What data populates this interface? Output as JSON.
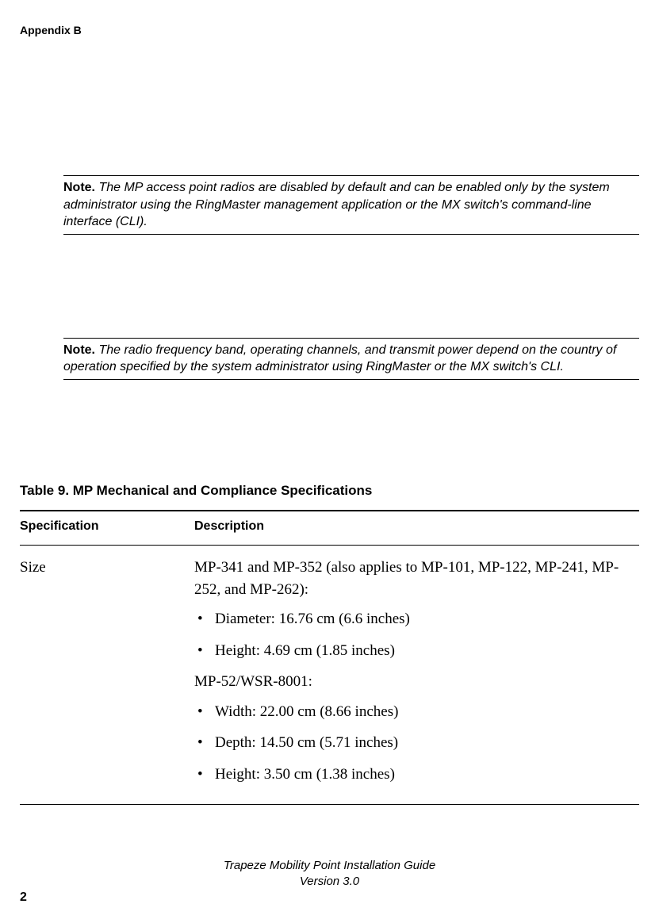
{
  "header": {
    "appendix": "Appendix  B"
  },
  "notes": [
    {
      "label": "Note.",
      "text": "  The MP access point radios are disabled by default and can be enabled only by the system administrator using the  RingMaster management application or the MX switch's command-line interface (CLI)."
    },
    {
      "label": "Note.",
      "text": "  The radio frequency band, operating channels, and transmit power depend on the country of operation specified by the system administrator using RingMaster or the MX switch's CLI."
    }
  ],
  "table": {
    "caption": "Table 9.    MP Mechanical and Compliance Specifications",
    "columns": [
      "Specification",
      "Description"
    ],
    "rows": [
      {
        "spec": "Size",
        "desc": {
          "para1": "MP-341 and MP-352 (also applies to MP-101, MP-122, MP-241, MP-252, and MP-262):",
          "list1": [
            "Diameter: 16.76 cm (6.6 inches)",
            "Height: 4.69 cm (1.85 inches)"
          ],
          "para2": "MP-52/WSR-8001:",
          "list2": [
            "Width: 22.00 cm (8.66 inches)",
            "Depth: 14.50 cm (5.71 inches)",
            "Height: 3.50 cm (1.38 inches)"
          ]
        }
      }
    ]
  },
  "footer": {
    "line1": "Trapeze Mobility Point Installation Guide",
    "line2": "Version 3.0",
    "page": "2"
  },
  "style": {
    "text_color": "#000000",
    "background_color": "#ffffff",
    "body_font": "Verdana",
    "serif_font": "Times New Roman",
    "header_fontsize": 14,
    "note_fontsize": 16,
    "caption_fontsize": 17,
    "th_fontsize": 16,
    "td_fontsize": 19,
    "footer_fontsize": 15
  }
}
